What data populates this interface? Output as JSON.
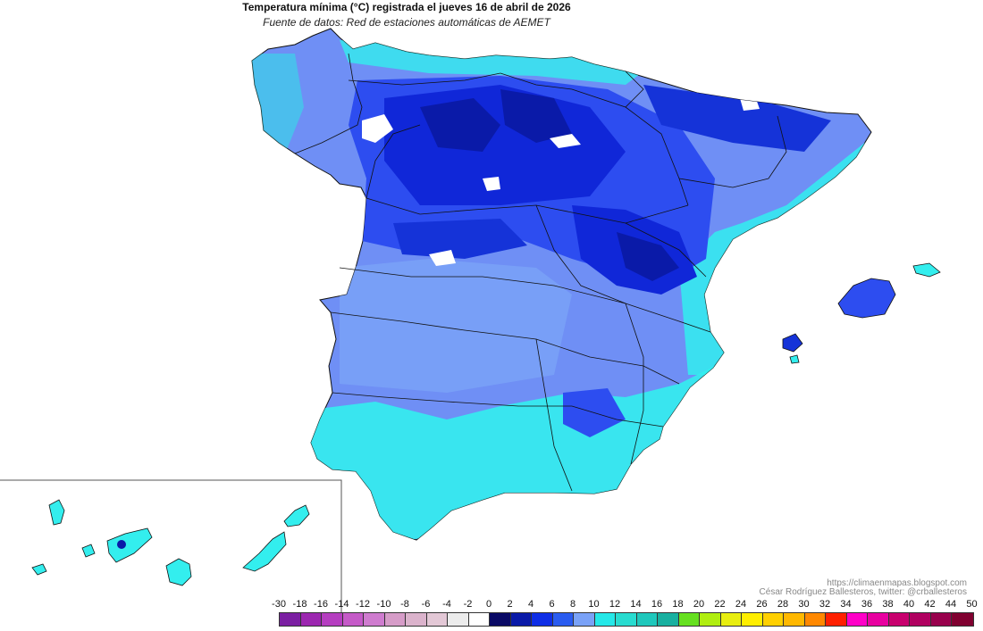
{
  "header": {
    "title": "Temperatura mínima (°C) registrada el jueves 16 de abril de 2026",
    "subtitle": "Fuente de datos: Red de estaciones automáticas de AEMET"
  },
  "credits": {
    "url": "https://climaenmapas.blogspot.com",
    "author": "César Rodríguez Ballesteros, twitter: @crballesteros"
  },
  "legend": {
    "unit": "°C",
    "labels": [
      "-30",
      "-18",
      "-16",
      "-14",
      "-12",
      "-10",
      "-8",
      "-6",
      "-4",
      "-2",
      "0",
      "2",
      "4",
      "6",
      "8",
      "10",
      "12",
      "14",
      "16",
      "18",
      "20",
      "22",
      "24",
      "26",
      "28",
      "30",
      "32",
      "34",
      "36",
      "38",
      "40",
      "42",
      "44",
      "50"
    ],
    "colors": [
      "#7b1fa2",
      "#9c27b0",
      "#b53ec0",
      "#c55ac8",
      "#cf7ccf",
      "#d69cc8",
      "#dbb3cc",
      "#e3c8d6",
      "#ececec",
      "#ffffff",
      "#0a0a66",
      "#0a1aa8",
      "#0f2ee6",
      "#2a5cf0",
      "#7aa2f7",
      "#25e8e8",
      "#28dcd0",
      "#1fc8bc",
      "#18b0a0",
      "#66e020",
      "#b0ee10",
      "#e8ee10",
      "#ffee00",
      "#ffd000",
      "#ffb800",
      "#ff8800",
      "#ff2000",
      "#ff00c8",
      "#e800a0",
      "#c8006e",
      "#b00060",
      "#98004c",
      "#800030"
    ]
  },
  "map": {
    "region": "España peninsular, Baleares y Canarias",
    "palette": {
      "sea": "#ffffff",
      "coast_warm": "#33eeee",
      "mid": "#6f8ff5",
      "cold": "#2d4df0",
      "very_cold": "#1027d8",
      "coldest": "#0a1aa8",
      "border": "#111111"
    }
  }
}
